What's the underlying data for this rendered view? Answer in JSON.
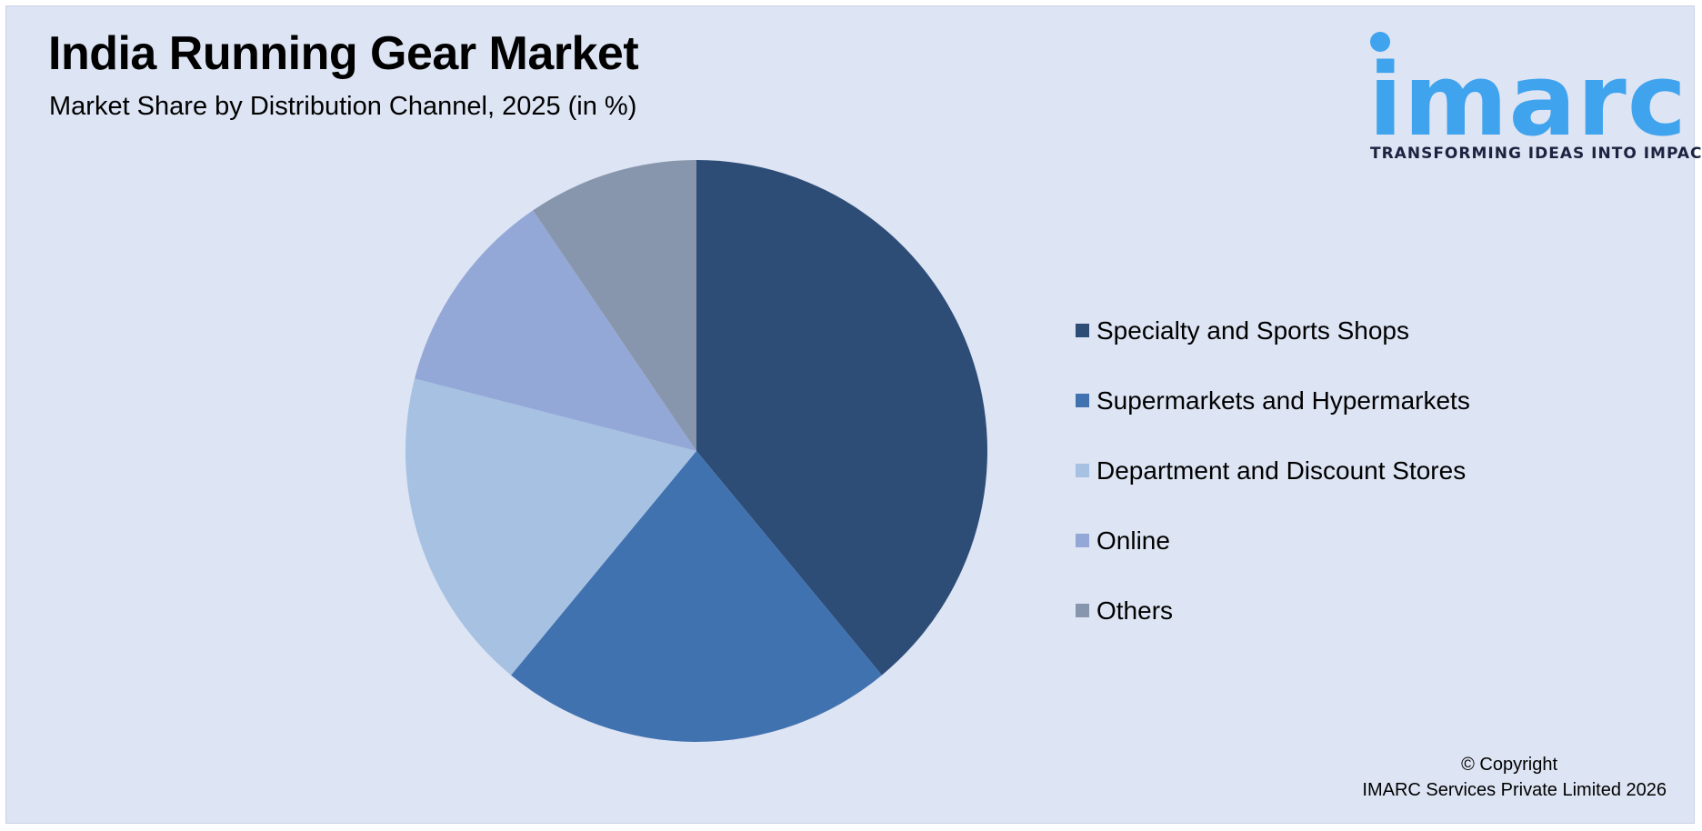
{
  "header": {
    "title": "India Running Gear Market",
    "subtitle": "Market Share by Distribution Channel, 2025 (in %)"
  },
  "logo": {
    "wordmark": "imarc",
    "tagline": "TRANSFORMING IDEAS INTO IMPACT",
    "color": "#3fa3ee"
  },
  "chart_data": {
    "type": "pie",
    "title": "India Running Gear Market",
    "subtitle": "Market Share by Distribution Channel, 2025 (in %)",
    "legend_position": "right",
    "slices": [
      {
        "name": "Specialty and Sports Shops",
        "value": 39,
        "color": "#2d4d77"
      },
      {
        "name": "Supermarkets and Hypermarkets",
        "value": 22,
        "color": "#4172b0"
      },
      {
        "name": "Department and Discount Stores",
        "value": 18,
        "color": "#a6c1e2"
      },
      {
        "name": "Online",
        "value": 11.5,
        "color": "#94a8d7"
      },
      {
        "name": "Others",
        "value": 9.5,
        "color": "#8896ad"
      }
    ]
  },
  "footer": {
    "copyright_line1": "© Copyright",
    "copyright_line2": "IMARC Services Private Limited 2026"
  }
}
